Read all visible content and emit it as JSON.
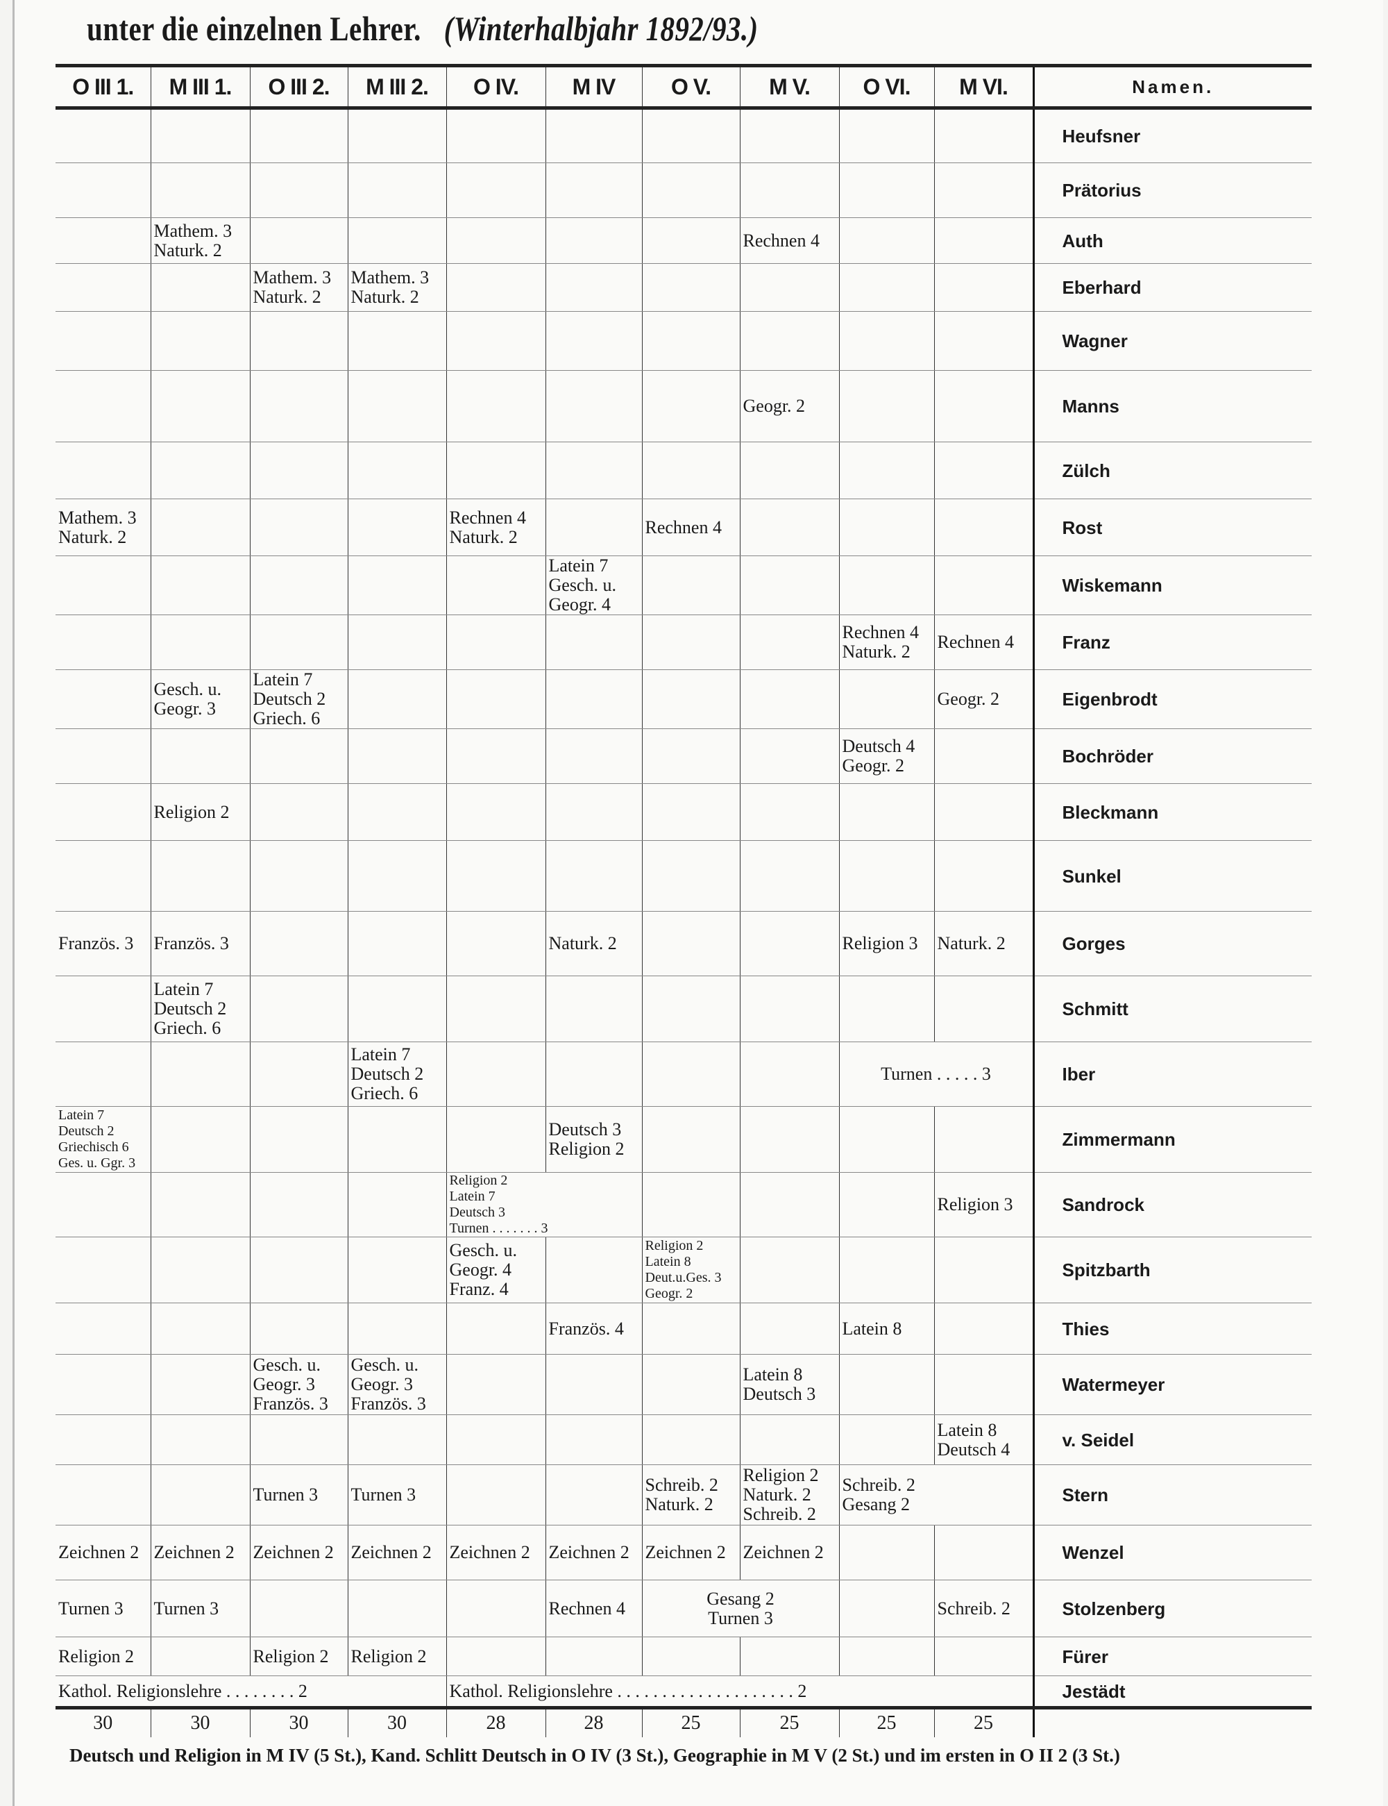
{
  "title": {
    "main": "unter die einzelnen Lehrer.",
    "sub": "(Winterhalbjahr 1892/93.)"
  },
  "columns": [
    "O III 1.",
    "M III 1.",
    "O III 2.",
    "M III 2.",
    "O IV.",
    "M IV",
    "O V.",
    "M V.",
    "O VI.",
    "M VI.",
    "Namen."
  ],
  "rows": [
    {
      "name": "Heufsner",
      "cells": [
        {
          "t": ""
        },
        {
          "t": ""
        },
        {
          "t": ""
        },
        {
          "t": ""
        },
        {
          "t": ""
        },
        {
          "t": ""
        },
        {
          "t": ""
        },
        {
          "t": ""
        },
        {
          "t": ""
        },
        {
          "t": ""
        }
      ]
    },
    {
      "name": "Prätorius",
      "cells": [
        {
          "t": ""
        },
        {
          "t": ""
        },
        {
          "t": ""
        },
        {
          "t": ""
        },
        {
          "t": ""
        },
        {
          "t": ""
        },
        {
          "t": ""
        },
        {
          "t": ""
        },
        {
          "t": ""
        },
        {
          "t": ""
        }
      ]
    },
    {
      "name": "Auth",
      "cells": [
        {
          "t": ""
        },
        {
          "t": "Mathem. 3\nNaturk. 2"
        },
        {
          "t": ""
        },
        {
          "t": ""
        },
        {
          "t": ""
        },
        {
          "t": ""
        },
        {
          "t": ""
        },
        {
          "t": "Rechnen 4"
        },
        {
          "t": ""
        },
        {
          "t": ""
        }
      ]
    },
    {
      "name": "Eberhard",
      "cells": [
        {
          "t": ""
        },
        {
          "t": ""
        },
        {
          "t": "Mathem. 3\nNaturk. 2"
        },
        {
          "t": "Mathem. 3\nNaturk. 2"
        },
        {
          "t": ""
        },
        {
          "t": ""
        },
        {
          "t": ""
        },
        {
          "t": ""
        },
        {
          "t": ""
        },
        {
          "t": ""
        }
      ]
    },
    {
      "name": "Wagner",
      "cells": [
        {
          "t": ""
        },
        {
          "t": ""
        },
        {
          "t": ""
        },
        {
          "t": ""
        },
        {
          "t": ""
        },
        {
          "t": ""
        },
        {
          "t": ""
        },
        {
          "t": ""
        },
        {
          "t": ""
        },
        {
          "t": ""
        }
      ]
    },
    {
      "name": "Manns",
      "cells": [
        {
          "t": ""
        },
        {
          "t": ""
        },
        {
          "t": ""
        },
        {
          "t": ""
        },
        {
          "t": ""
        },
        {
          "t": ""
        },
        {
          "t": ""
        },
        {
          "t": "Geogr. 2"
        },
        {
          "t": ""
        },
        {
          "t": ""
        }
      ]
    },
    {
      "name": "Zülch",
      "cells": [
        {
          "t": ""
        },
        {
          "t": ""
        },
        {
          "t": ""
        },
        {
          "t": ""
        },
        {
          "t": ""
        },
        {
          "t": ""
        },
        {
          "t": ""
        },
        {
          "t": ""
        },
        {
          "t": ""
        },
        {
          "t": ""
        }
      ]
    },
    {
      "name": "Rost",
      "cells": [
        {
          "t": "Mathem. 3\nNaturk. 2"
        },
        {
          "t": ""
        },
        {
          "t": ""
        },
        {
          "t": ""
        },
        {
          "t": "Rechnen 4\nNaturk. 2"
        },
        {
          "t": ""
        },
        {
          "t": "Rechnen 4"
        },
        {
          "t": ""
        },
        {
          "t": ""
        },
        {
          "t": ""
        }
      ]
    },
    {
      "name": "Wiskemann",
      "cells": [
        {
          "t": ""
        },
        {
          "t": ""
        },
        {
          "t": ""
        },
        {
          "t": ""
        },
        {
          "t": ""
        },
        {
          "t": "Latein 7\nGesch. u.\nGeogr. 4"
        },
        {
          "t": ""
        },
        {
          "t": ""
        },
        {
          "t": ""
        },
        {
          "t": ""
        }
      ]
    },
    {
      "name": "Franz",
      "cells": [
        {
          "t": ""
        },
        {
          "t": ""
        },
        {
          "t": ""
        },
        {
          "t": ""
        },
        {
          "t": ""
        },
        {
          "t": ""
        },
        {
          "t": ""
        },
        {
          "t": ""
        },
        {
          "t": "Rechnen 4\nNaturk. 2"
        },
        {
          "t": "Rechnen 4"
        }
      ]
    },
    {
      "name": "Eigenbrodt",
      "cells": [
        {
          "t": ""
        },
        {
          "t": "Gesch. u.\nGeogr. 3"
        },
        {
          "t": "Latein 7\nDeutsch 2\nGriech. 6"
        },
        {
          "t": ""
        },
        {
          "t": ""
        },
        {
          "t": ""
        },
        {
          "t": ""
        },
        {
          "t": ""
        },
        {
          "t": ""
        },
        {
          "t": "Geogr. 2"
        }
      ]
    },
    {
      "name": "Bochröder",
      "cells": [
        {
          "t": ""
        },
        {
          "t": ""
        },
        {
          "t": ""
        },
        {
          "t": ""
        },
        {
          "t": ""
        },
        {
          "t": ""
        },
        {
          "t": ""
        },
        {
          "t": ""
        },
        {
          "t": "Deutsch 4\nGeogr. 2"
        },
        {
          "t": ""
        }
      ]
    },
    {
      "name": "Bleckmann",
      "cells": [
        {
          "t": ""
        },
        {
          "t": "Religion 2"
        },
        {
          "t": ""
        },
        {
          "t": ""
        },
        {
          "t": ""
        },
        {
          "t": ""
        },
        {
          "t": ""
        },
        {
          "t": ""
        },
        {
          "t": ""
        },
        {
          "t": ""
        }
      ]
    },
    {
      "name": "Sunkel",
      "cells": [
        {
          "t": ""
        },
        {
          "t": ""
        },
        {
          "t": ""
        },
        {
          "t": ""
        },
        {
          "t": ""
        },
        {
          "t": ""
        },
        {
          "t": ""
        },
        {
          "t": ""
        },
        {
          "t": ""
        },
        {
          "t": ""
        }
      ]
    },
    {
      "name": "Gorges",
      "cells": [
        {
          "t": "Französ. 3"
        },
        {
          "t": "Französ. 3"
        },
        {
          "t": ""
        },
        {
          "t": ""
        },
        {
          "t": ""
        },
        {
          "t": "Naturk. 2"
        },
        {
          "t": ""
        },
        {
          "t": ""
        },
        {
          "t": "Religion 3"
        },
        {
          "t": "Naturk. 2"
        }
      ]
    },
    {
      "name": "Schmitt",
      "cells": [
        {
          "t": ""
        },
        {
          "t": "Latein 7\nDeutsch 2\nGriech. 6"
        },
        {
          "t": ""
        },
        {
          "t": ""
        },
        {
          "t": ""
        },
        {
          "t": ""
        },
        {
          "t": ""
        },
        {
          "t": ""
        },
        {
          "t": ""
        },
        {
          "t": ""
        }
      ]
    },
    {
      "name": "Iber",
      "cells": [
        {
          "t": ""
        },
        {
          "t": ""
        },
        {
          "t": ""
        },
        {
          "t": "Latein 7\nDeutsch 2\nGriech. 6"
        },
        {
          "t": ""
        },
        {
          "t": ""
        },
        {
          "t": ""
        },
        {
          "t": ""
        },
        {
          "t": "Turnen . . . . . 3",
          "span": 2,
          "cls": "center"
        }
      ]
    },
    {
      "name": "Zimmermann",
      "cells": [
        {
          "t": "Latein 7\nDeutsch 2\nGriechisch 6\nGes. u. Ggr. 3",
          "cls": "small"
        },
        {
          "t": ""
        },
        {
          "t": ""
        },
        {
          "t": ""
        },
        {
          "t": ""
        },
        {
          "t": "Deutsch 3\nReligion 2"
        },
        {
          "t": ""
        },
        {
          "t": ""
        },
        {
          "t": ""
        },
        {
          "t": ""
        }
      ]
    },
    {
      "name": "Sandrock",
      "cells": [
        {
          "t": ""
        },
        {
          "t": ""
        },
        {
          "t": ""
        },
        {
          "t": ""
        },
        {
          "t": "Religion 2\nLatein 7\nDeutsch 3\nTurnen . . . . . . . 3",
          "span": 2,
          "cls": "small"
        },
        {
          "t": ""
        },
        {
          "t": ""
        },
        {
          "t": ""
        },
        {
          "t": "Religion 3"
        }
      ]
    },
    {
      "name": "Spitzbarth",
      "cells": [
        {
          "t": ""
        },
        {
          "t": ""
        },
        {
          "t": ""
        },
        {
          "t": ""
        },
        {
          "t": "Gesch. u.\nGeogr. 4\nFranz. 4"
        },
        {
          "t": ""
        },
        {
          "t": "Religion 2\nLatein 8\nDeut.u.Ges. 3\nGeogr. 2",
          "cls": "small"
        },
        {
          "t": ""
        },
        {
          "t": ""
        },
        {
          "t": ""
        }
      ]
    },
    {
      "name": "Thies",
      "cells": [
        {
          "t": ""
        },
        {
          "t": ""
        },
        {
          "t": ""
        },
        {
          "t": ""
        },
        {
          "t": ""
        },
        {
          "t": "Französ. 4"
        },
        {
          "t": ""
        },
        {
          "t": ""
        },
        {
          "t": "Latein 8"
        },
        {
          "t": ""
        }
      ]
    },
    {
      "name": "Watermeyer",
      "cells": [
        {
          "t": ""
        },
        {
          "t": ""
        },
        {
          "t": "Gesch. u.\nGeogr. 3\nFranzös. 3"
        },
        {
          "t": "Gesch. u.\nGeogr. 3\nFranzös. 3"
        },
        {
          "t": ""
        },
        {
          "t": ""
        },
        {
          "t": ""
        },
        {
          "t": "Latein 8\nDeutsch 3"
        },
        {
          "t": ""
        },
        {
          "t": ""
        }
      ]
    },
    {
      "name": "v. Seidel",
      "cells": [
        {
          "t": ""
        },
        {
          "t": ""
        },
        {
          "t": ""
        },
        {
          "t": ""
        },
        {
          "t": ""
        },
        {
          "t": ""
        },
        {
          "t": ""
        },
        {
          "t": ""
        },
        {
          "t": ""
        },
        {
          "t": "Latein 8\nDeutsch 4"
        }
      ]
    },
    {
      "name": "Stern",
      "cells": [
        {
          "t": ""
        },
        {
          "t": ""
        },
        {
          "t": "Turnen 3"
        },
        {
          "t": "Turnen 3"
        },
        {
          "t": ""
        },
        {
          "t": ""
        },
        {
          "t": "Schreib. 2\nNaturk. 2"
        },
        {
          "t": "Religion 2\nNaturk. 2\nSchreib. 2"
        },
        {
          "t": "Schreib. 2\n              Gesang 2",
          "span": 2
        }
      ]
    },
    {
      "name": "Wenzel",
      "cells": [
        {
          "t": "Zeichnen 2"
        },
        {
          "t": "Zeichnen 2"
        },
        {
          "t": "Zeichnen 2"
        },
        {
          "t": "Zeichnen 2"
        },
        {
          "t": "Zeichnen 2"
        },
        {
          "t": "Zeichnen 2"
        },
        {
          "t": "Zeichnen 2"
        },
        {
          "t": "Zeichnen 2"
        },
        {
          "t": ""
        },
        {
          "t": ""
        }
      ]
    },
    {
      "name": "Stolzenberg",
      "cells": [
        {
          "t": "Turnen 3"
        },
        {
          "t": "Turnen 3"
        },
        {
          "t": ""
        },
        {
          "t": ""
        },
        {
          "t": ""
        },
        {
          "t": "Rechnen 4"
        },
        {
          "t": "Gesang 2\nTurnen 3",
          "span": 2,
          "cls": "center"
        },
        {
          "t": ""
        },
        {
          "t": "Schreib. 2"
        }
      ]
    },
    {
      "name": "Fürer",
      "cells": [
        {
          "t": "Religion 2"
        },
        {
          "t": ""
        },
        {
          "t": "Religion 2"
        },
        {
          "t": "Religion 2"
        },
        {
          "t": ""
        },
        {
          "t": ""
        },
        {
          "t": ""
        },
        {
          "t": ""
        },
        {
          "t": ""
        },
        {
          "t": ""
        }
      ]
    },
    {
      "name": "Jestädt",
      "cells": [
        {
          "t": "Kathol. Religionslehre . . . . . . . . 2",
          "span": 4
        },
        {
          "t": "Kathol. Religionslehre . . . . . . . . . . . . . . . . . . . . 2",
          "span": 6
        }
      ]
    }
  ],
  "totals": [
    "30",
    "30",
    "30",
    "30",
    "28",
    "28",
    "25",
    "25",
    "25",
    "25"
  ],
  "footer": "Deutsch und Religion in M IV (5 St.), Kand. Schlitt Deutsch in O IV (3 St.), Geographie in M V (2 St.) und im ersten in O II 2 (3 St.)"
}
